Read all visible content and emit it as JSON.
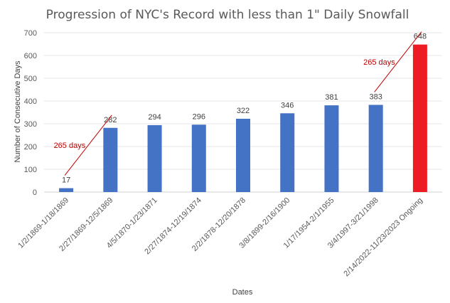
{
  "chart_data": {
    "type": "bar",
    "title": "Progression of NYC's Record with less than 1\" Daily Snowfall",
    "xlabel": "Dates",
    "ylabel": "Number  of Consecutive Days",
    "ylim": [
      0,
      700
    ],
    "yticks": [
      0,
      100,
      200,
      300,
      400,
      500,
      600,
      700
    ],
    "grid": true,
    "legend": "none",
    "categories": [
      "1/2/1869-1/18/1869",
      "2/27/1869-12/5/1869",
      "4/5/1870-1/23/1871",
      "2/27/1874-12/19/1874",
      "2/2/1878-12/20/1878",
      "3/8/1899-2/16/1900",
      "1/17/1954-2/1/1955",
      "3/4/1997-3/21/1998",
      "2/14/2022-11/23/2023 Ongoing"
    ],
    "values": [
      17,
      282,
      294,
      296,
      322,
      346,
      381,
      383,
      648
    ],
    "data_labels": [
      "17",
      "282",
      "294",
      "296",
      "322",
      "346",
      "381",
      "383",
      "648"
    ],
    "colors": {
      "bar": "#4472c4",
      "highlight_bar": "#ed1c24",
      "annotation": "#c00000"
    },
    "highlight_index": 8,
    "annotations": [
      {
        "text": "265 days",
        "from_index": 0,
        "to_index": 1,
        "from_value": 17,
        "to_value": 282
      },
      {
        "text": "265 days",
        "from_index": 7,
        "to_index": 8,
        "from_value": 383,
        "to_value": 648
      }
    ]
  }
}
